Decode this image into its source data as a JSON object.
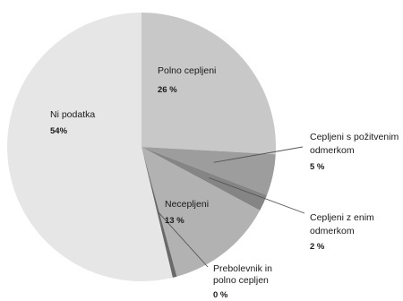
{
  "chart_data": {
    "type": "pie",
    "slices": [
      {
        "name": "Polno cepljeni",
        "value": 26,
        "value_label": "26 %",
        "color": "#c8c8c8"
      },
      {
        "name": "Cepljeni s požitvenim odmerkom",
        "value": 5,
        "value_label": "5 %",
        "color": "#9d9d9d"
      },
      {
        "name": "Cepljeni z enim odmerkom",
        "value": 2,
        "value_label": "2 %",
        "color": "#858585"
      },
      {
        "name": "Necepljeni",
        "value": 13,
        "value_label": "13 %",
        "color": "#b2b2b2"
      },
      {
        "name": "Prebolevnik in polno cepljen",
        "value": 0.5,
        "value_label": "0 %",
        "color": "#6a6a6a"
      },
      {
        "name": "Ni podatka",
        "value": 54,
        "value_label": "54%",
        "color": "#e6e6e6"
      }
    ]
  }
}
